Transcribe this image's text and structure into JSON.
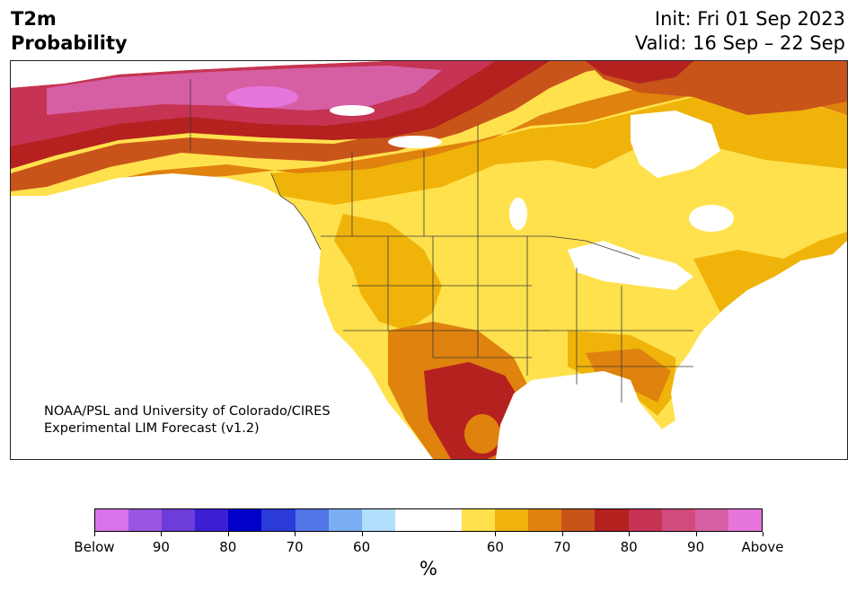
{
  "header": {
    "title_line1": "T2m",
    "title_line2": "Probability",
    "init_text": "Init: Fri 01 Sep 2023",
    "valid_text": "Valid: 16 Sep – 22 Sep"
  },
  "credit": {
    "line1": "NOAA/PSL and University of Colorado/CIRES",
    "line2": "Experimental LIM Forecast (v1.2)"
  },
  "colorbar": {
    "colors": [
      "#d874ea",
      "#9a55e0",
      "#6e3cd9",
      "#3a1fd3",
      "#0000c8",
      "#2a3bd8",
      "#5276e6",
      "#7aaef2",
      "#b2defb",
      "#ffffff",
      "#ffffff",
      "#ffe14d",
      "#f0b30a",
      "#df820e",
      "#c9541a",
      "#b4211f",
      "#c63353",
      "#d14c7c",
      "#d65fa4",
      "#e675dc"
    ],
    "labels": [
      "Below",
      "90",
      "80",
      "70",
      "60",
      "60",
      "70",
      "80",
      "90",
      "Above"
    ],
    "unit": "%"
  },
  "map": {
    "ocean_color": "#ffffff",
    "land_neutral": "#ffffff",
    "border_color": "#3a3a3a"
  }
}
